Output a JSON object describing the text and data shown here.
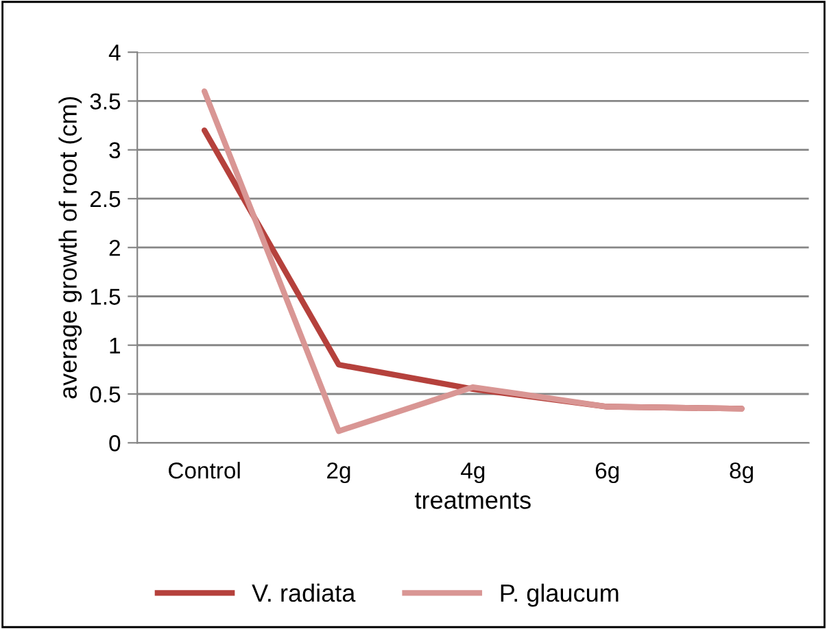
{
  "chart_data": {
    "type": "line",
    "xlabel": "treatments",
    "ylabel": "average growth of root (cm)",
    "categories": [
      "Control",
      "2g",
      "4g",
      "6g",
      "8g"
    ],
    "series": [
      {
        "name": "V. radiata",
        "color": "#b5413c",
        "values": [
          3.2,
          0.8,
          0.55,
          0.37,
          0.35
        ]
      },
      {
        "name": "P. glaucum",
        "color": "#d99694",
        "values": [
          3.6,
          0.12,
          0.57,
          0.37,
          0.35
        ]
      }
    ],
    "ylim": [
      0,
      4
    ],
    "yticks": [
      0,
      0.5,
      1,
      1.5,
      2,
      2.5,
      3,
      3.5,
      4
    ],
    "grid": "y",
    "legend": "bottom",
    "marker": "none",
    "line_style": "solid"
  }
}
